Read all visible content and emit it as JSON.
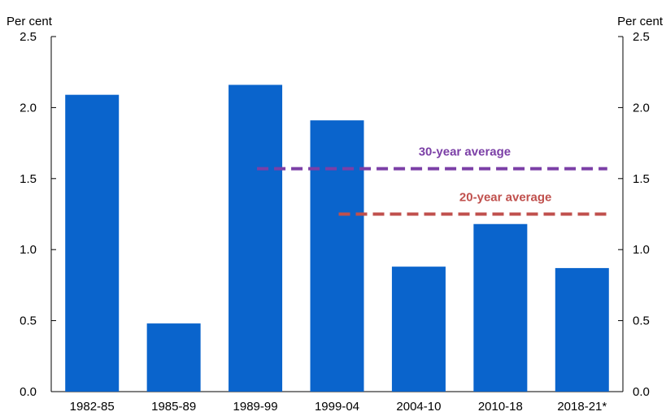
{
  "chart_data": {
    "type": "bar",
    "title": "",
    "xlabel": "",
    "ylabel_left": "Per cent",
    "ylabel_right": "Per cent",
    "categories": [
      "1982-85",
      "1985-89",
      "1989-99",
      "1999-04",
      "2004-10",
      "2010-18",
      "2018-21*"
    ],
    "values": [
      2.09,
      0.48,
      2.16,
      1.91,
      0.88,
      1.18,
      0.87
    ],
    "ylim": [
      0,
      2.5
    ],
    "yticks": [
      "0.0",
      "0.5",
      "1.0",
      "1.5",
      "2.0",
      "2.5"
    ],
    "grid": false,
    "bar_color": "#0a64cc",
    "averages": [
      {
        "label": "30-year average",
        "value": 1.57,
        "from_category": "1989-99",
        "to_category": "2018-21*",
        "color": "#7b3fa6"
      },
      {
        "label": "20-year average",
        "value": 1.25,
        "from_category": "1999-04",
        "to_category": "2018-21*",
        "color": "#c0504d"
      }
    ]
  }
}
